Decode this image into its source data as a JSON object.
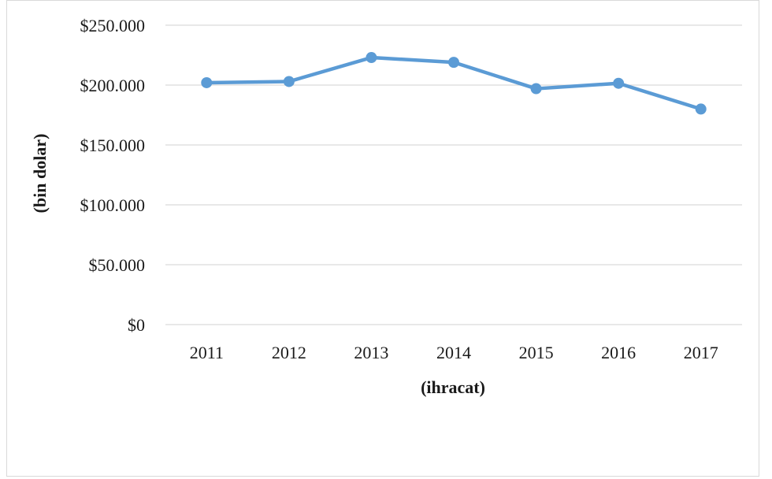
{
  "chart_data": {
    "type": "line",
    "categories": [
      "2011",
      "2012",
      "2013",
      "2014",
      "2015",
      "2016",
      "2017"
    ],
    "series": [
      {
        "values": [
          202000,
          203000,
          223000,
          219000,
          197000,
          201500,
          180000
        ]
      }
    ],
    "xlabel": "(ihracat)",
    "ylabel": "(bin dolar)",
    "ylim": [
      0,
      250000
    ],
    "yticks": [
      0,
      50000,
      100000,
      150000,
      200000,
      250000
    ],
    "ytick_labels": [
      "$0",
      "$50.000",
      "$100.000",
      "$150.000",
      "$200.000",
      "$250.000"
    ],
    "grid": true,
    "colors": {
      "line": "#5b9bd5",
      "grid": "#d9d9d9"
    }
  }
}
